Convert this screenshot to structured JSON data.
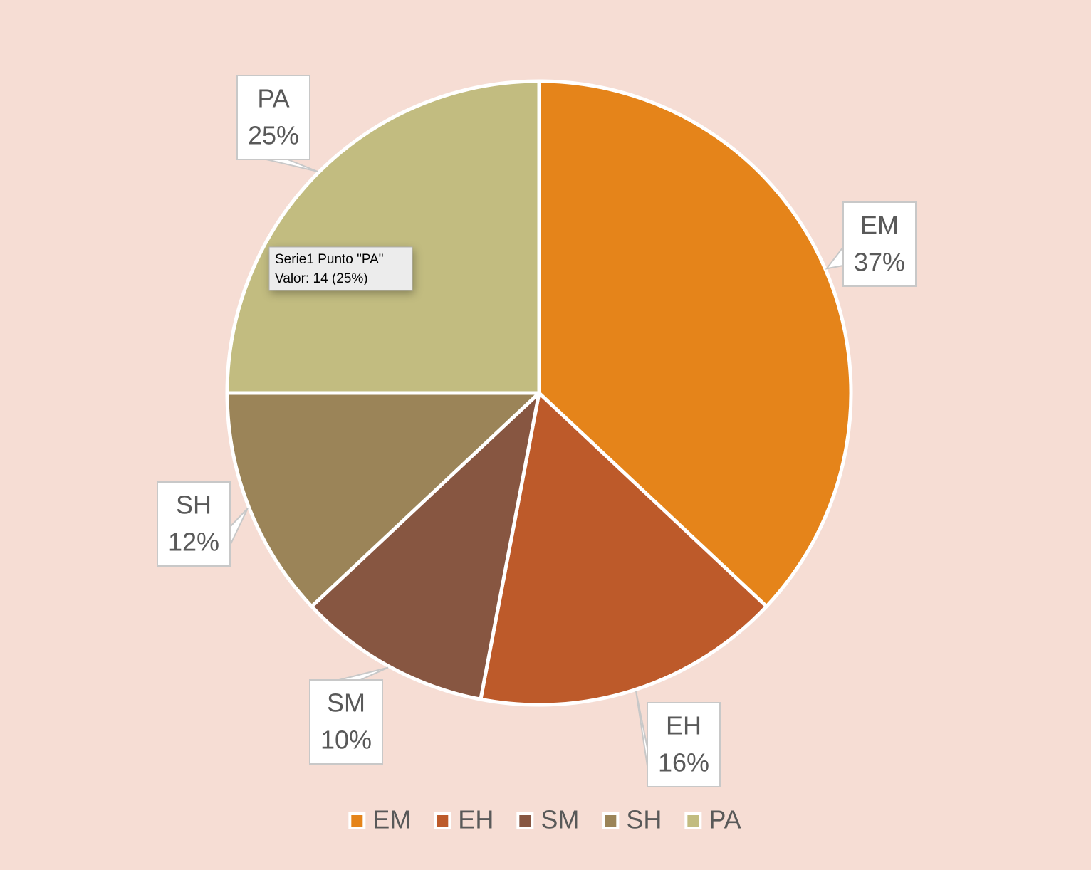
{
  "chart_data": {
    "type": "pie",
    "categories": [
      "EM",
      "EH",
      "SM",
      "SH",
      "PA"
    ],
    "values": [
      37,
      16,
      10,
      12,
      25
    ],
    "value_labels": [
      "37%",
      "16%",
      "10%",
      "12%",
      "25%"
    ],
    "colors": [
      "#e5841a",
      "#bd5a2a",
      "#875641",
      "#9b8458",
      "#c2bc80"
    ],
    "legend": "bottom",
    "tooltip": {
      "title": "Serie1 Punto \"PA\"",
      "text": "Valor: 14 (25%)"
    }
  }
}
